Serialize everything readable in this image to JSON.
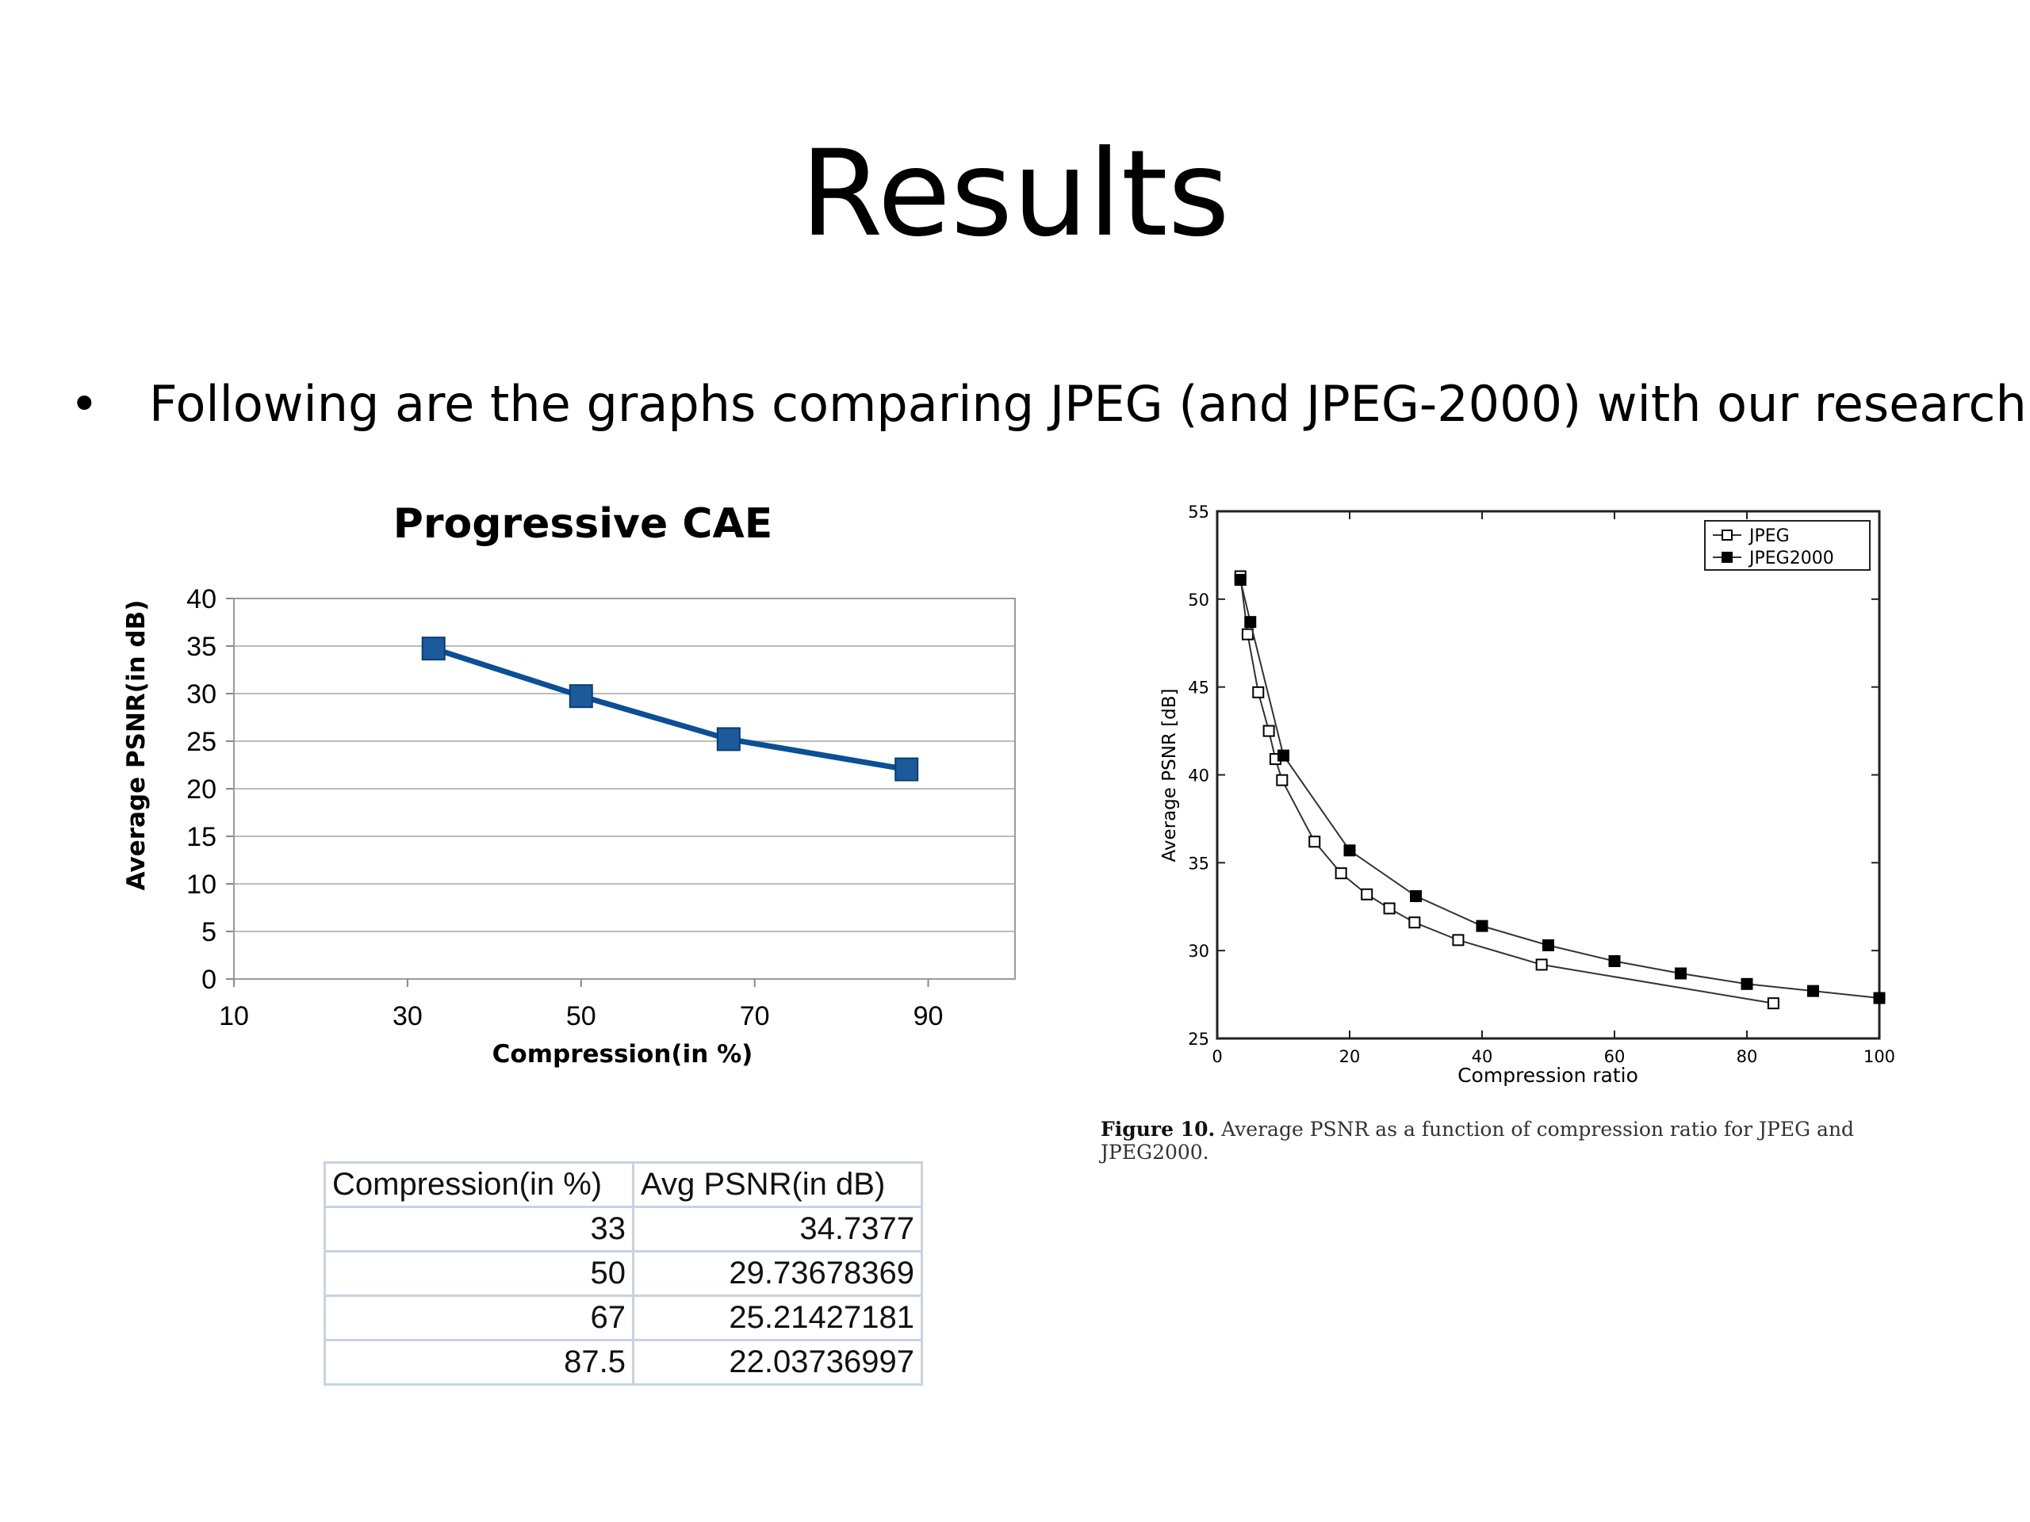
{
  "slide": {
    "title": "Results",
    "bullet_marker": "•",
    "bullet_text": "Following are the graphs comparing JPEG (and JPEG-2000) with our research"
  },
  "colors": {
    "left_series": "#0b4f94",
    "marker_fill": "#1d5a9b",
    "grid": "#bcbcbc",
    "table_border": "#c8d2e3"
  },
  "chart_data": [
    {
      "id": "progressive-cae",
      "type": "line",
      "title": "Progressive CAE",
      "xlabel": "Compression(in %)",
      "ylabel": "Average PSNR(in dB)",
      "xlim": [
        10,
        100
      ],
      "ylim": [
        0,
        40
      ],
      "x_ticks": [
        10,
        30,
        50,
        70,
        90
      ],
      "y_ticks": [
        0,
        5,
        10,
        15,
        20,
        25,
        30,
        35,
        40
      ],
      "grid": true,
      "series": [
        {
          "name": "Progressive CAE",
          "x": [
            33,
            50,
            67,
            87.5
          ],
          "y": [
            34.7377,
            29.73678369,
            25.21427181,
            22.03736997
          ]
        }
      ]
    },
    {
      "id": "jpeg-comparison",
      "type": "line",
      "xlabel": "Compression ratio",
      "ylabel": "Average PSNR [dB]",
      "xlim": [
        0,
        100
      ],
      "ylim": [
        25,
        55
      ],
      "x_ticks": [
        0,
        20,
        40,
        60,
        80,
        100
      ],
      "y_ticks": [
        25,
        30,
        35,
        40,
        45,
        50,
        55
      ],
      "legend": "top-right",
      "series": [
        {
          "name": "JPEG",
          "marker": "open-square",
          "x": [
            3.5,
            4.6,
            6.2,
            7.8,
            8.8,
            9.8,
            14.7,
            18.7,
            22.6,
            26.0,
            29.8,
            36.4,
            49.0,
            84.0
          ],
          "y": [
            51.3,
            48.0,
            44.7,
            42.5,
            40.9,
            39.7,
            36.2,
            34.4,
            33.2,
            32.4,
            31.6,
            30.6,
            29.2,
            27.0
          ]
        },
        {
          "name": "JPEG2000",
          "marker": "filled-square",
          "x": [
            3.5,
            5.0,
            10.0,
            20.0,
            30.0,
            40.0,
            50.0,
            60.0,
            70.0,
            80.0,
            90.0,
            100.0
          ],
          "y": [
            51.1,
            48.7,
            41.1,
            35.7,
            33.1,
            31.4,
            30.3,
            29.4,
            28.7,
            28.1,
            27.7,
            27.3
          ]
        }
      ]
    }
  ],
  "caption": {
    "label": "Figure 10.",
    "text": "Average PSNR as a function of compression ratio for JPEG and JPEG2000."
  },
  "table": {
    "headers": [
      "Compression(in %)",
      "Avg PSNR(in dB)"
    ],
    "rows": [
      [
        "33",
        "34.7377"
      ],
      [
        "50",
        "29.73678369"
      ],
      [
        "67",
        "25.21427181"
      ],
      [
        "87.5",
        "22.03736997"
      ]
    ]
  }
}
